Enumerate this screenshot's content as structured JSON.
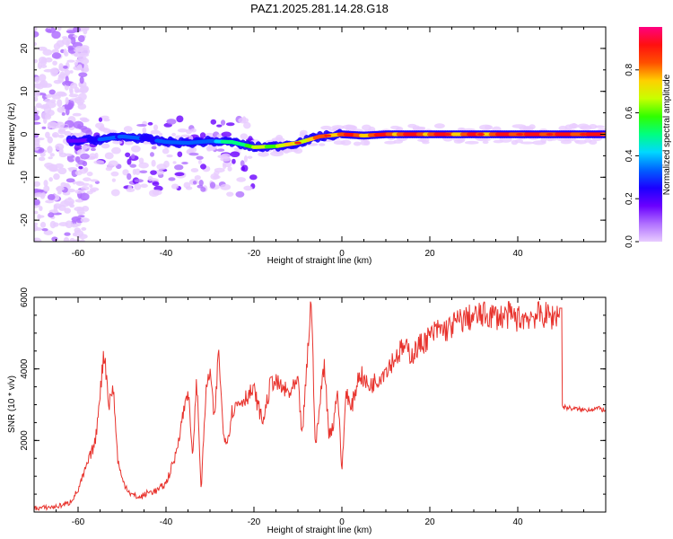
{
  "figure": {
    "title": "PAZ1.2025.281.14.28.G18"
  },
  "colors": {
    "snr_line": "#e8332d",
    "frame": "#000000",
    "colormap": [
      "#e8ccff",
      "#b070ff",
      "#6a00ff",
      "#1b00ff",
      "#0060ff",
      "#00d8ff",
      "#00ff80",
      "#30ff00",
      "#c8ff00",
      "#ffd000",
      "#ff5000",
      "#ff1010",
      "#ff0080"
    ]
  },
  "chart_data": [
    {
      "id": "spectrogram",
      "type": "heatmap",
      "title": "PAZ1.2025.281.14.28.G18",
      "xlabel": "Height of straight line (km)",
      "ylabel": "Frequency (Hz)",
      "xlim": [
        -70,
        60
      ],
      "ylim": [
        -25,
        25
      ],
      "xticks": [
        -60,
        -40,
        -20,
        0,
        20,
        40
      ],
      "yticks": [
        -20,
        -10,
        0,
        10,
        20
      ],
      "ridge": {
        "x": [
          -70,
          -60,
          -55,
          -50,
          -45,
          -40,
          -35,
          -30,
          -25,
          -20,
          -15,
          -10,
          -5,
          0,
          5,
          10,
          20,
          30,
          40,
          50,
          60
        ],
        "freq": [
          -1.5,
          -1.5,
          -1.2,
          -0.5,
          -1.0,
          -1.8,
          -2.0,
          -1.6,
          -1.8,
          -3.0,
          -2.8,
          -2.0,
          -0.5,
          0,
          -0.3,
          0,
          0,
          0,
          0,
          0,
          0
        ],
        "amplitude": [
          0.15,
          0.2,
          0.3,
          0.35,
          0.3,
          0.35,
          0.35,
          0.4,
          0.55,
          0.65,
          0.7,
          0.75,
          0.85,
          0.9,
          0.9,
          0.92,
          0.92,
          0.9,
          0.95,
          0.95,
          0.95
        ]
      },
      "colorbar": {
        "label": "Normalized spectral amplitude",
        "range": [
          0,
          1
        ],
        "ticks": [
          0.0,
          0.2,
          0.4,
          0.6,
          0.8
        ]
      }
    },
    {
      "id": "snr",
      "type": "line",
      "xlabel": "Height of straight line (km)",
      "ylabel": "SNR (10 * v/v)",
      "xlim": [
        -70,
        60
      ],
      "ylim": [
        0,
        6000
      ],
      "xticks": [
        -60,
        -40,
        -20,
        0,
        20,
        40
      ],
      "yticks": [
        2000,
        4000,
        6000
      ],
      "series": [
        {
          "name": "SNR",
          "x": [
            -70,
            -65,
            -62,
            -60,
            -58,
            -56,
            -55,
            -54,
            -53,
            -52,
            -51,
            -50,
            -48,
            -46,
            -44,
            -42,
            -40,
            -38,
            -36,
            -35,
            -34,
            -33,
            -32,
            -31,
            -30,
            -29,
            -28,
            -27,
            -26,
            -25,
            -24,
            -22,
            -20,
            -18,
            -16,
            -14,
            -12,
            -10,
            -9,
            -8,
            -7,
            -6,
            -5,
            -4,
            -3,
            -2,
            -1,
            0,
            1,
            2,
            4,
            6,
            8,
            10,
            12,
            14,
            16,
            18,
            20,
            22,
            24,
            26,
            28,
            30,
            32,
            34,
            36,
            38,
            40,
            42,
            44,
            46,
            48,
            49.5,
            50,
            52,
            55,
            58,
            60
          ],
          "y": [
            100,
            150,
            250,
            600,
            1300,
            2000,
            3400,
            4500,
            3000,
            3500,
            1500,
            900,
            500,
            400,
            550,
            600,
            800,
            1500,
            2800,
            3500,
            1500,
            3700,
            600,
            3200,
            4000,
            2500,
            4550,
            2200,
            2000,
            2800,
            3000,
            3200,
            3400,
            2500,
            3700,
            3500,
            3300,
            3600,
            2100,
            4000,
            6000,
            1800,
            3000,
            4250,
            2200,
            2400,
            3500,
            1100,
            3500,
            2800,
            3900,
            3500,
            3700,
            4000,
            4300,
            4600,
            4400,
            4700,
            4900,
            5100,
            5100,
            5300,
            5400,
            5450,
            5500,
            5500,
            5450,
            5500,
            5400,
            5450,
            5500,
            5500,
            5450,
            5600,
            2950,
            2900,
            2850,
            2900,
            2850
          ]
        }
      ]
    }
  ]
}
